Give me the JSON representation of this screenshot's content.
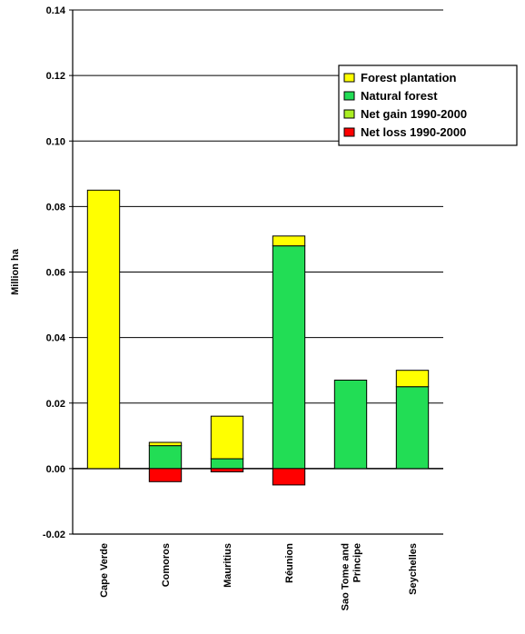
{
  "chart_data": {
    "type": "bar",
    "stacked": true,
    "ylabel": "Million ha",
    "ylim": [
      -0.02,
      0.14
    ],
    "yticks": [
      "-0.02",
      "0.00",
      "0.02",
      "0.04",
      "0.06",
      "0.08",
      "0.10",
      "0.12",
      "0.14"
    ],
    "grid": true,
    "legend_position": "top-right",
    "categories": [
      [
        "Cape Verde"
      ],
      [
        "Comoros"
      ],
      [
        "Mauritius"
      ],
      [
        "Réunion"
      ],
      [
        "Sao Tome and",
        "Principe"
      ],
      [
        "Seychelles"
      ]
    ],
    "series": [
      {
        "name": "Forest plantation",
        "color": "#ffff00",
        "values": [
          0.085,
          0.001,
          0.013,
          0.003,
          0.0,
          0.005
        ]
      },
      {
        "name": "Natural forest",
        "color": "#22dd55",
        "values": [
          0.0,
          0.007,
          0.003,
          0.068,
          0.027,
          0.025
        ]
      },
      {
        "name": "Net gain 1990-2000",
        "color": "#aaee22",
        "values": [
          0,
          0,
          0,
          0,
          0,
          0
        ]
      },
      {
        "name": "Net loss 1990-2000",
        "color": "#ff0000",
        "values": [
          0.0,
          -0.004,
          -0.001,
          -0.005,
          0.0,
          0.0
        ]
      }
    ]
  }
}
